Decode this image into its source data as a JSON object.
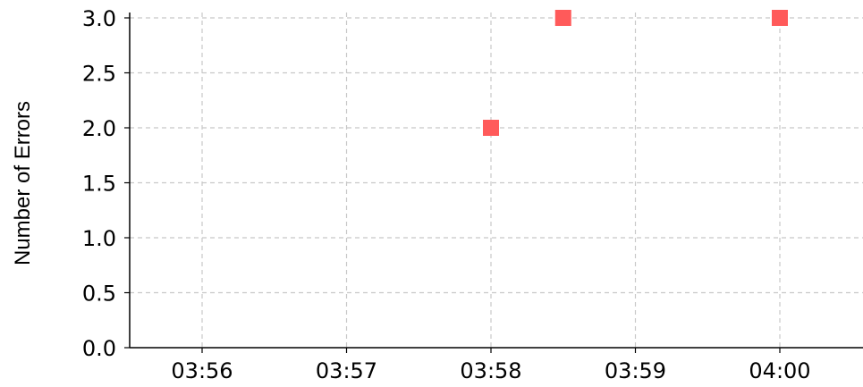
{
  "chart_data": {
    "type": "scatter",
    "title": "",
    "xlabel": "",
    "ylabel": "Number of Errors",
    "x_tick_labels": [
      "03:56",
      "03:57",
      "03:58",
      "03:59",
      "04:00"
    ],
    "y_tick_labels": [
      "0.0",
      "0.5",
      "1.0",
      "1.5",
      "2.0",
      "2.5",
      "3.0"
    ],
    "y_ticks": [
      0,
      0.5,
      1.0,
      1.5,
      2.0,
      2.5,
      3.0
    ],
    "ylim": [
      0,
      3.0
    ],
    "grid": true,
    "grid_style": "dashed",
    "marker": "square",
    "marker_color": "#ff5a5a",
    "series": [
      {
        "points": [
          {
            "x": "03:58:00",
            "y": 2
          },
          {
            "x": "03:58:30",
            "y": 3
          },
          {
            "x": "04:00:00",
            "y": 3
          }
        ]
      }
    ]
  }
}
